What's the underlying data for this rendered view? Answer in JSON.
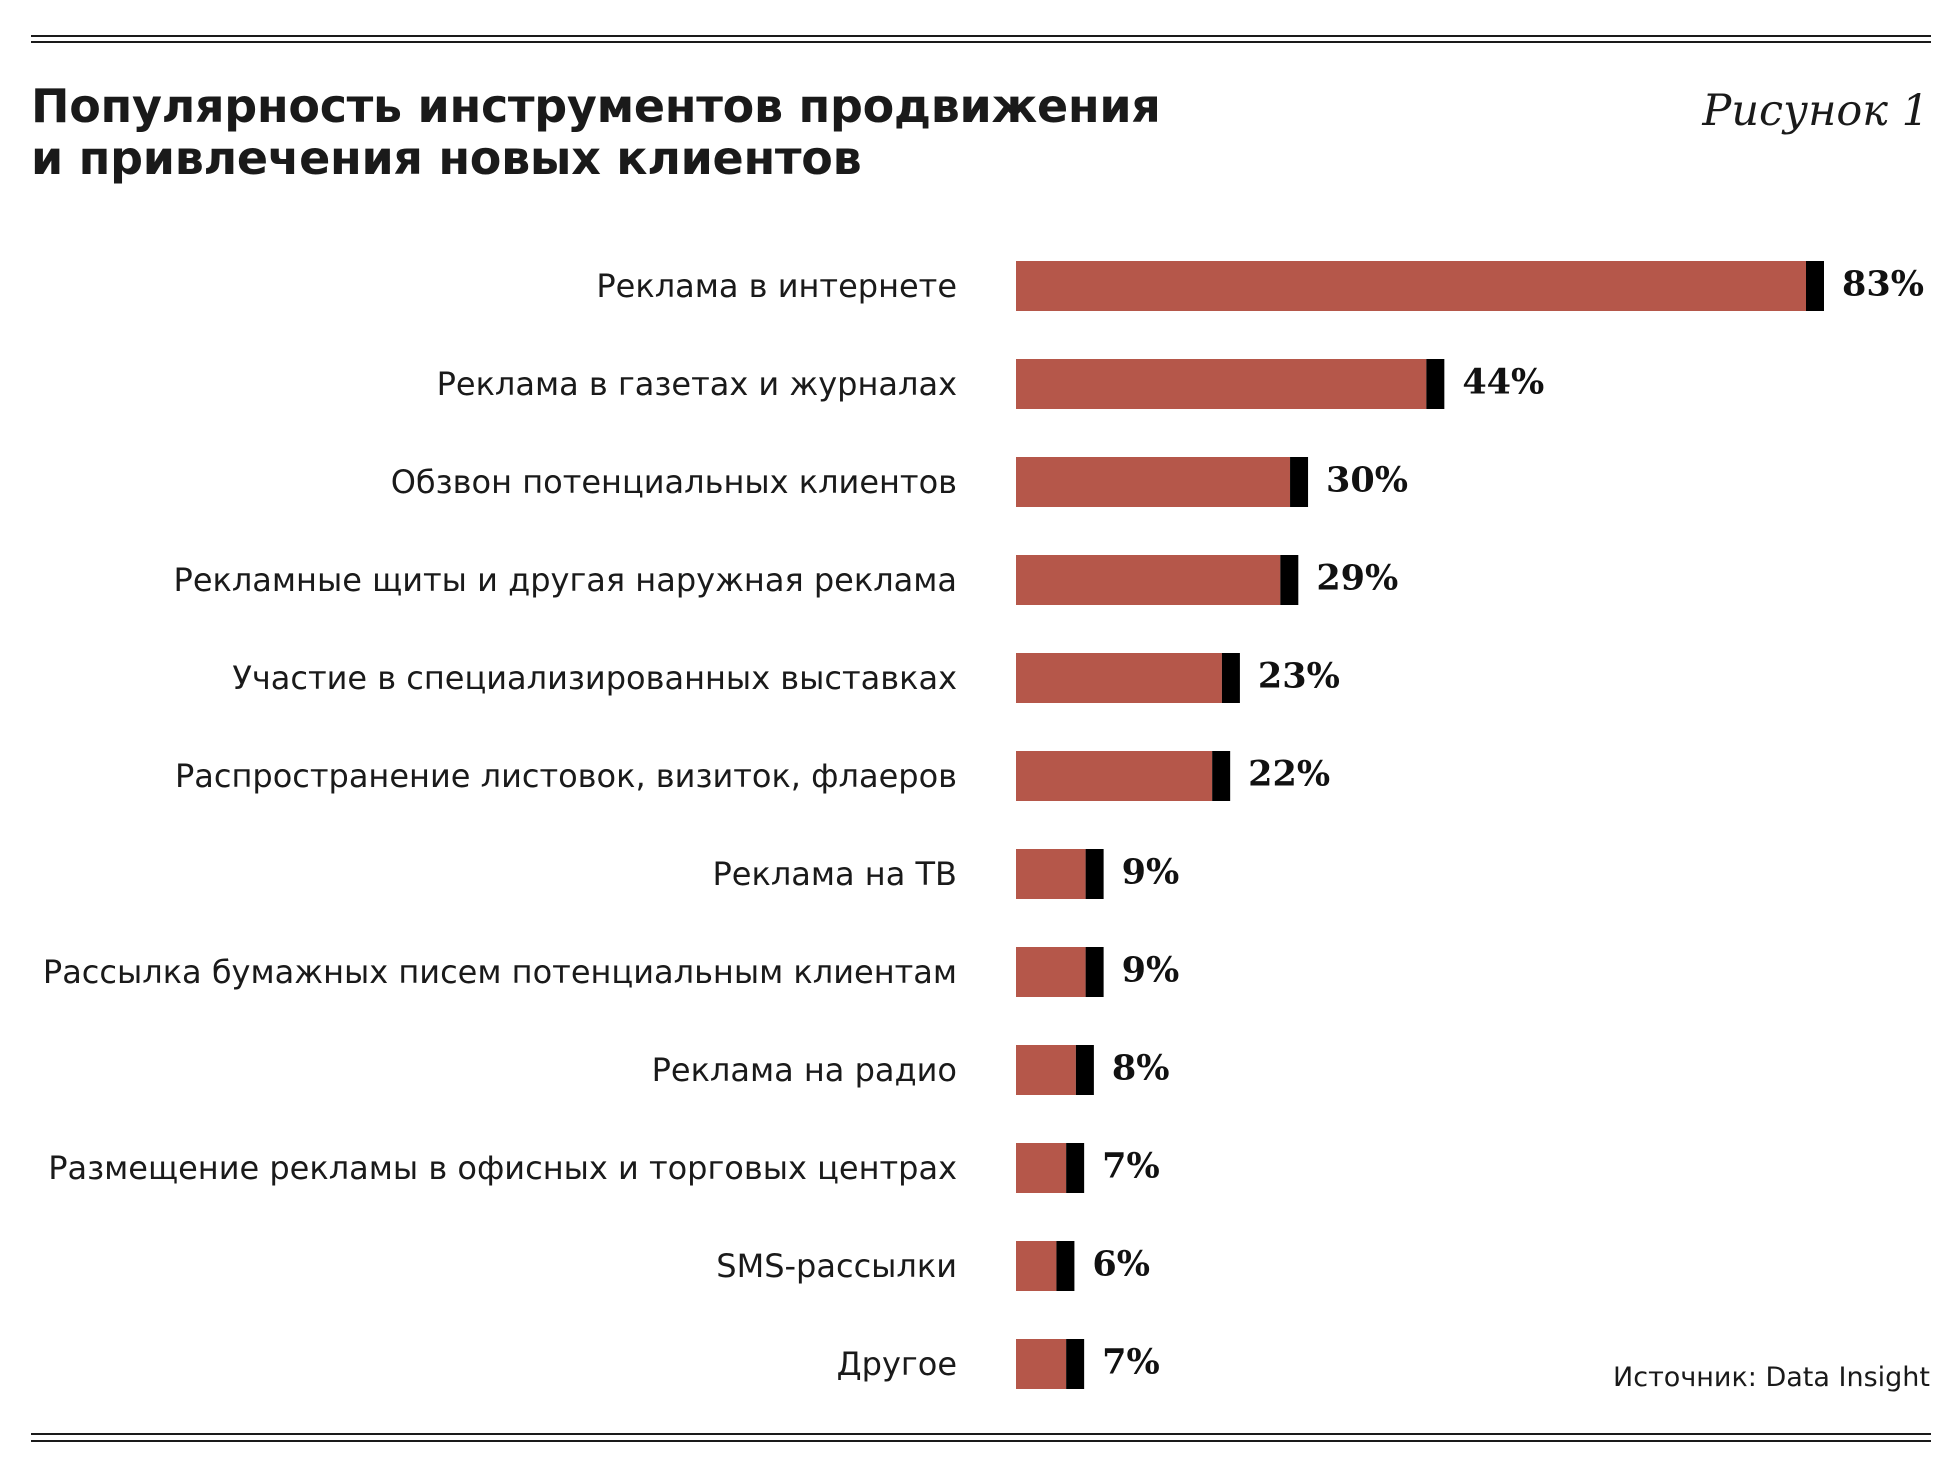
{
  "header": {
    "title_line1": "Популярность инструментов продвижения",
    "title_line2": "и привлечения новых клиентов",
    "figure_label": "Рисунок 1"
  },
  "source": "Источник: Data Insight",
  "colors": {
    "bar": "#b5574a",
    "cap": "#000000",
    "rule": "#1a1a1a"
  },
  "chart_data": {
    "type": "bar",
    "orientation": "horizontal",
    "title": "Популярность инструментов продвижения и привлечения новых клиентов",
    "xlabel": "",
    "ylabel": "",
    "unit": "%",
    "xlim": [
      0,
      83
    ],
    "grid": false,
    "categories": [
      "Реклама в интернете",
      "Реклама в газетах и журналах",
      "Обзвон потенциальных клиентов",
      "Рекламные щиты и другая наружная реклама",
      "Участие в специализированных выставках",
      "Распространение листовок, визиток, флаеров",
      "Реклама на ТВ",
      "Рассылка бумажных писем потенциальным клиентам",
      "Реклама на радио",
      "Размещение рекламы в офисных и торговых центрах",
      "SMS-рассылки",
      "Другое"
    ],
    "values": [
      83,
      44,
      30,
      29,
      23,
      22,
      9,
      9,
      8,
      7,
      6,
      7
    ],
    "value_labels": [
      "83%",
      "44%",
      "30%",
      "29%",
      "23%",
      "22%",
      "9%",
      "9%",
      "8%",
      "7%",
      "6%",
      "7%"
    ]
  }
}
